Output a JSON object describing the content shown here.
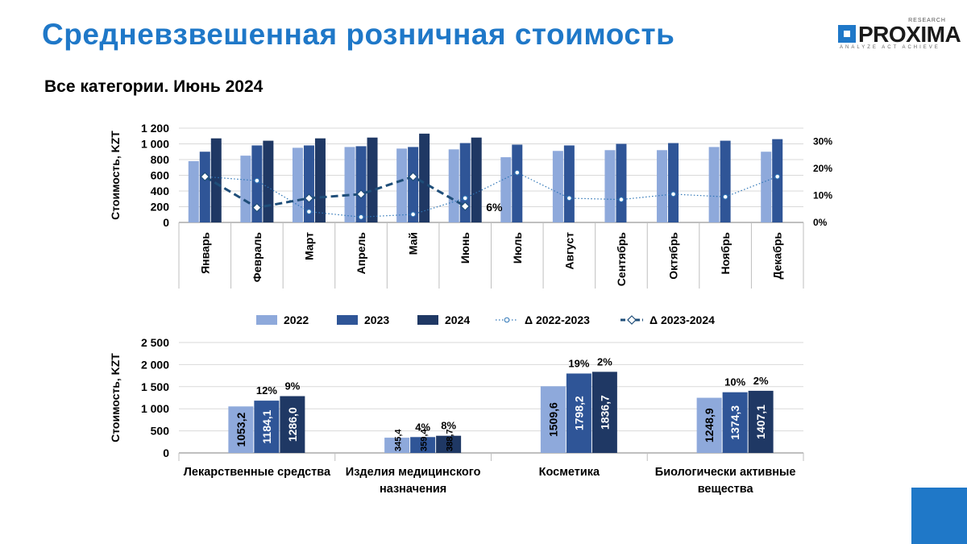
{
  "header": {
    "title": "Средневзвешенная розничная стоимость",
    "subtitle": "Все категории. Июнь 2024"
  },
  "logo": {
    "text": "PROXIMA",
    "research": "RESEARCH",
    "tagline": "ANALYZE ACT ACHIEVE"
  },
  "colors": {
    "s2022": "#8EA9DB",
    "s2023": "#2F5597",
    "s2024": "#1F3864",
    "title": "#1F78C8",
    "corner": "#1F78C8"
  },
  "chart_data": [
    {
      "type": "bar",
      "ylabel": "Стоимость, KZT",
      "ylim": [
        0,
        1200
      ],
      "y2lim": [
        0,
        0.35
      ],
      "y_ticks": [
        "0",
        "200",
        "400",
        "600",
        "800",
        "1 000",
        "1 200"
      ],
      "y2_ticks": [
        "0%",
        "10%",
        "20%",
        "30%"
      ],
      "categories": [
        "Январь",
        "Февраль",
        "Март",
        "Апрель",
        "Май",
        "Июнь",
        "Июль",
        "Август",
        "Сентябрь",
        "Октябрь",
        "Ноябрь",
        "Декабрь"
      ],
      "series": [
        {
          "name": "2022",
          "values": [
            780,
            850,
            950,
            960,
            940,
            930,
            830,
            910,
            920,
            920,
            960,
            900
          ]
        },
        {
          "name": "2023",
          "values": [
            900,
            980,
            980,
            970,
            960,
            1010,
            990,
            980,
            1000,
            1010,
            1040,
            1060
          ]
        },
        {
          "name": "2024",
          "values": [
            1070,
            1040,
            1070,
            1080,
            1130,
            1080,
            null,
            null,
            null,
            null,
            null,
            null
          ]
        }
      ],
      "lines": [
        {
          "name": "Δ 2022-2023",
          "values": [
            0.17,
            0.155,
            0.04,
            0.02,
            0.03,
            0.09,
            0.185,
            0.09,
            0.085,
            0.105,
            0.095,
            0.17
          ]
        },
        {
          "name": "Δ 2023-2024",
          "values": [
            0.17,
            0.055,
            0.09,
            0.105,
            0.17,
            0.06,
            null,
            null,
            null,
            null,
            null,
            null
          ]
        }
      ],
      "annotation": "6%"
    },
    {
      "type": "bar",
      "ylabel": "Стоимость, KZT",
      "ylim": [
        0,
        2500
      ],
      "y_ticks": [
        "0",
        "500",
        "1 000",
        "1 500",
        "2 000",
        "2 500"
      ],
      "categories": [
        "Лекарственные средства",
        "Изделия медицинского назначения",
        "Косметика",
        "Биологически активные вещества"
      ],
      "category_lines": [
        [
          "Лекарственные средства"
        ],
        [
          "Изделия медицинского",
          "назначения"
        ],
        [
          "Косметика"
        ],
        [
          "Биологически активные",
          "вещества"
        ]
      ],
      "series": [
        {
          "name": "2022",
          "values": [
            1053.2,
            345.4,
            1509.6,
            1248.9
          ],
          "labels": [
            "1053,2",
            "345,4",
            "1509,6",
            "1248,9"
          ]
        },
        {
          "name": "2023",
          "values": [
            1184.1,
            359.4,
            1798.2,
            1374.3
          ],
          "labels": [
            "1184,1",
            "359,4",
            "1798,2",
            "1374,3"
          ]
        },
        {
          "name": "2024",
          "values": [
            1286.0,
            388.7,
            1836.7,
            1407.1
          ],
          "labels": [
            "1286,0",
            "388,7",
            "1836,7",
            "1407,1"
          ]
        }
      ],
      "growth_labels": [
        [
          "12%",
          "9%"
        ],
        [
          "4%",
          "8%"
        ],
        [
          "19%",
          "2%"
        ],
        [
          "10%",
          "2%"
        ]
      ]
    }
  ],
  "legend": [
    {
      "name": "2022",
      "kind": "bar"
    },
    {
      "name": "2023",
      "kind": "bar"
    },
    {
      "name": "2024",
      "kind": "bar"
    },
    {
      "name": "Δ 2022-2023",
      "kind": "dotted"
    },
    {
      "name": "Δ 2023-2024",
      "kind": "dashed"
    }
  ]
}
